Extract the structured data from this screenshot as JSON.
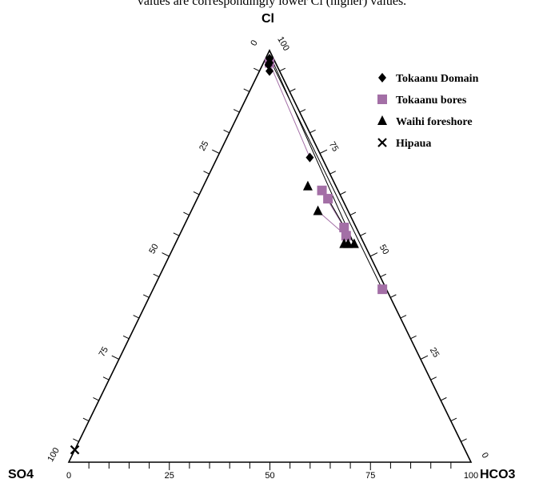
{
  "top_caption": "values are correspondingly lower Cl (higher) values.",
  "chart_data": {
    "type": "ternary-scatter",
    "vertices": {
      "top": "Cl",
      "left": "SO4",
      "right": "HCO3"
    },
    "ticks": [
      "0",
      "25",
      "50",
      "75",
      "100"
    ],
    "legend_placement": "top-right",
    "series": [
      {
        "name": "Tokaanu Domain",
        "marker": "diamond",
        "color": "#000000",
        "points": [
          {
            "cl": 98,
            "so4": 1,
            "hco3": 1
          },
          {
            "cl": 97,
            "so4": 1.5,
            "hco3": 1.5
          },
          {
            "cl": 96.5,
            "so4": 2,
            "hco3": 1.5
          },
          {
            "cl": 95,
            "so4": 2.5,
            "hco3": 2.5
          },
          {
            "cl": 74,
            "so4": 3,
            "hco3": 23
          }
        ]
      },
      {
        "name": "Tokaanu bores",
        "marker": "square",
        "color": "#a36fa6",
        "points": [
          {
            "cl": 97,
            "so4": 1.5,
            "hco3": 1.5
          },
          {
            "cl": 66,
            "so4": 4,
            "hco3": 30
          },
          {
            "cl": 64,
            "so4": 3.5,
            "hco3": 32.5
          },
          {
            "cl": 57,
            "so4": 3,
            "hco3": 40
          },
          {
            "cl": 55,
            "so4": 3.5,
            "hco3": 41.5
          },
          {
            "cl": 42,
            "so4": 1,
            "hco3": 57
          }
        ]
      },
      {
        "name": "Waihi foreshore",
        "marker": "triangle",
        "color": "#000000",
        "points": [
          {
            "cl": 67,
            "so4": 7,
            "hco3": 26
          },
          {
            "cl": 61,
            "so4": 7.5,
            "hco3": 31.5
          },
          {
            "cl": 53,
            "so4": 5,
            "hco3": 42
          },
          {
            "cl": 53,
            "so4": 4,
            "hco3": 43
          },
          {
            "cl": 53,
            "so4": 2.5,
            "hco3": 44.5
          }
        ]
      },
      {
        "name": "Hipaua",
        "marker": "x",
        "color": "#000000",
        "points": [
          {
            "cl": 3,
            "so4": 97,
            "hco3": 0
          }
        ]
      }
    ],
    "lines": [
      {
        "color": "#a36fa6",
        "from": {
          "cl": 97,
          "so4": 1.5,
          "hco3": 1.5
        },
        "to": {
          "cl": 74,
          "so4": 3,
          "hco3": 23
        }
      },
      {
        "color": "#a36fa6",
        "from": {
          "cl": 66,
          "so4": 4,
          "hco3": 30
        },
        "to": {
          "cl": 57,
          "so4": 3,
          "hco3": 40
        }
      },
      {
        "color": "#a36fa6",
        "from": {
          "cl": 61,
          "so4": 7.5,
          "hco3": 31.5
        },
        "to": {
          "cl": 55,
          "so4": 3.5,
          "hco3": 41.5
        }
      },
      {
        "color": "#000000",
        "from": {
          "cl": 98,
          "so4": 1,
          "hco3": 1
        },
        "to": {
          "cl": 42,
          "so4": 1,
          "hco3": 57
        }
      },
      {
        "color": "#000000",
        "from": {
          "cl": 98,
          "so4": 0.5,
          "hco3": 1.5
        },
        "to": {
          "cl": 53,
          "so4": 2.5,
          "hco3": 44.5
        }
      },
      {
        "color": "#000000",
        "from": {
          "cl": 64,
          "so4": 3.5,
          "hco3": 32.5
        },
        "to": {
          "cl": 53,
          "so4": 2.5,
          "hco3": 44.5
        }
      }
    ]
  }
}
